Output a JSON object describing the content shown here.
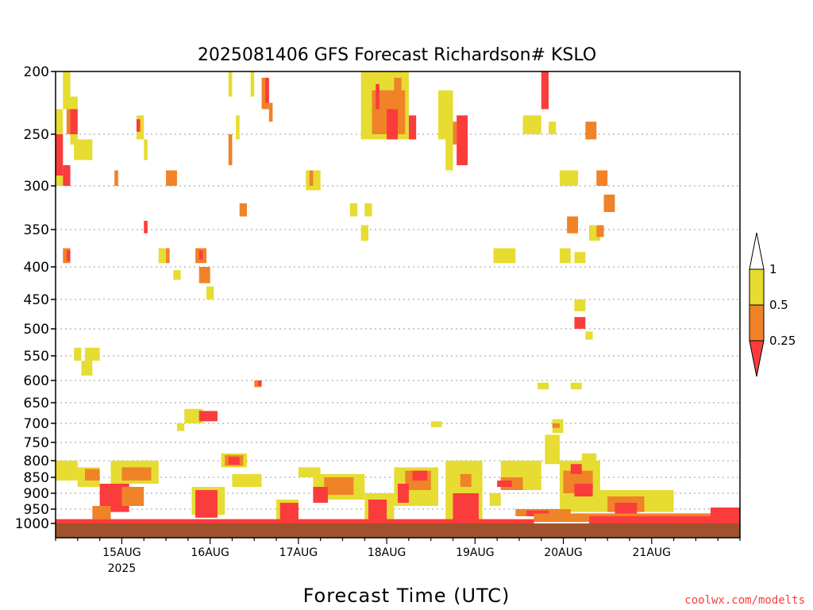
{
  "chart_data": {
    "type": "heatmap",
    "title": "2025081406 GFS Forecast Richardson# KSLO",
    "xlabel": "Forecast Time (UTC)",
    "ylabel": "",
    "credit": "coolwx.com/modelts",
    "y_scale": "pressure (decreasing upward)",
    "ylim": [
      1000,
      200
    ],
    "y_ticks": [
      200,
      250,
      300,
      350,
      400,
      450,
      500,
      550,
      600,
      650,
      700,
      750,
      800,
      850,
      900,
      950,
      1000
    ],
    "x_ticks": [
      {
        "label": "15AUG",
        "sublabel": "2025",
        "hour": 18
      },
      {
        "label": "16AUG",
        "sublabel": "",
        "hour": 42
      },
      {
        "label": "17AUG",
        "sublabel": "",
        "hour": 66
      },
      {
        "label": "18AUG",
        "sublabel": "",
        "hour": 90
      },
      {
        "label": "19AUG",
        "sublabel": "",
        "hour": 114
      },
      {
        "label": "20AUG",
        "sublabel": "",
        "hour": 138
      },
      {
        "label": "21AUG",
        "sublabel": "",
        "hour": 162
      }
    ],
    "xlim_hours": [
      0,
      186
    ],
    "grid": true,
    "legend": {
      "placement": "right",
      "levels": [
        "1",
        "0.5",
        "0.25"
      ],
      "colors": {
        "gt1": "#ffffff",
        "c05_1": "#e6dc32",
        "c025_05": "#f08228",
        "lt025": "#fa3c3c"
      }
    },
    "surface_color": "#a0522d",
    "cells": [
      {
        "t0": 0,
        "t1": 2,
        "p0": 230,
        "p1": 300,
        "c": "y"
      },
      {
        "t0": 0,
        "t1": 2,
        "p0": 250,
        "p1": 290,
        "c": "r"
      },
      {
        "t0": 2,
        "t1": 4,
        "p0": 200,
        "p1": 230,
        "c": "y"
      },
      {
        "t0": 2,
        "t1": 4,
        "p0": 280,
        "p1": 300,
        "c": "r"
      },
      {
        "t0": 3,
        "t1": 5,
        "p0": 230,
        "p1": 250,
        "c": "o"
      },
      {
        "t0": 4,
        "t1": 6,
        "p0": 220,
        "p1": 260,
        "c": "y"
      },
      {
        "t0": 4,
        "t1": 6,
        "p0": 230,
        "p1": 250,
        "c": "r"
      },
      {
        "t0": 5,
        "t1": 10,
        "p0": 255,
        "p1": 275,
        "c": "y"
      },
      {
        "t0": 2,
        "t1": 4,
        "p0": 375,
        "p1": 395,
        "c": "o"
      },
      {
        "t0": 3,
        "t1": 4,
        "p0": 378,
        "p1": 392,
        "c": "r"
      },
      {
        "t0": 5,
        "t1": 7,
        "p0": 535,
        "p1": 560,
        "c": "y"
      },
      {
        "t0": 7,
        "t1": 10,
        "p0": 560,
        "p1": 590,
        "c": "y"
      },
      {
        "t0": 8,
        "t1": 12,
        "p0": 535,
        "p1": 560,
        "c": "y"
      },
      {
        "t0": 16,
        "t1": 17,
        "p0": 285,
        "p1": 300,
        "c": "o"
      },
      {
        "t0": 22,
        "t1": 24,
        "p0": 235,
        "p1": 255,
        "c": "y"
      },
      {
        "t0": 22,
        "t1": 23,
        "p0": 238,
        "p1": 248,
        "c": "r"
      },
      {
        "t0": 24,
        "t1": 25,
        "p0": 255,
        "p1": 275,
        "c": "y"
      },
      {
        "t0": 30,
        "t1": 33,
        "p0": 285,
        "p1": 300,
        "c": "o"
      },
      {
        "t0": 28,
        "t1": 30,
        "p0": 375,
        "p1": 395,
        "c": "y"
      },
      {
        "t0": 30,
        "t1": 31,
        "p0": 375,
        "p1": 395,
        "c": "o"
      },
      {
        "t0": 32,
        "t1": 34,
        "p0": 405,
        "p1": 420,
        "c": "y"
      },
      {
        "t0": 38,
        "t1": 41,
        "p0": 375,
        "p1": 395,
        "c": "o"
      },
      {
        "t0": 39,
        "t1": 40,
        "p0": 378,
        "p1": 390,
        "c": "r"
      },
      {
        "t0": 39,
        "t1": 42,
        "p0": 400,
        "p1": 425,
        "c": "o"
      },
      {
        "t0": 41,
        "t1": 43,
        "p0": 430,
        "p1": 450,
        "c": "y"
      },
      {
        "t0": 24,
        "t1": 25,
        "p0": 340,
        "p1": 355,
        "c": "r"
      },
      {
        "t0": 47,
        "t1": 48,
        "p0": 200,
        "p1": 220,
        "c": "y"
      },
      {
        "t0": 47,
        "t1": 48,
        "p0": 250,
        "p1": 280,
        "c": "o"
      },
      {
        "t0": 49,
        "t1": 50,
        "p0": 235,
        "p1": 255,
        "c": "y"
      },
      {
        "t0": 53,
        "t1": 54,
        "p0": 200,
        "p1": 220,
        "c": "y"
      },
      {
        "t0": 56,
        "t1": 58,
        "p0": 205,
        "p1": 230,
        "c": "o"
      },
      {
        "t0": 57,
        "t1": 58,
        "p0": 205,
        "p1": 225,
        "c": "r"
      },
      {
        "t0": 58,
        "t1": 59,
        "p0": 225,
        "p1": 240,
        "c": "o"
      },
      {
        "t0": 50,
        "t1": 52,
        "p0": 320,
        "p1": 335,
        "c": "o"
      },
      {
        "t0": 54,
        "t1": 56,
        "p0": 600,
        "p1": 615,
        "c": "o"
      },
      {
        "t0": 55,
        "t1": 56,
        "p0": 600,
        "p1": 612,
        "c": "r"
      },
      {
        "t0": 68,
        "t1": 72,
        "p0": 285,
        "p1": 305,
        "c": "y"
      },
      {
        "t0": 69,
        "t1": 70,
        "p0": 285,
        "p1": 300,
        "c": "o"
      },
      {
        "t0": 80,
        "t1": 82,
        "p0": 320,
        "p1": 335,
        "c": "y"
      },
      {
        "t0": 84,
        "t1": 86,
        "p0": 320,
        "p1": 335,
        "c": "y"
      },
      {
        "t0": 83,
        "t1": 85,
        "p0": 345,
        "p1": 365,
        "c": "y"
      },
      {
        "t0": 83,
        "t1": 96,
        "p0": 200,
        "p1": 255,
        "c": "y"
      },
      {
        "t0": 86,
        "t1": 95,
        "p0": 215,
        "p1": 250,
        "c": "o"
      },
      {
        "t0": 87,
        "t1": 88,
        "p0": 210,
        "p1": 230,
        "c": "r"
      },
      {
        "t0": 90,
        "t1": 93,
        "p0": 230,
        "p1": 255,
        "c": "r"
      },
      {
        "t0": 92,
        "t1": 94,
        "p0": 205,
        "p1": 230,
        "c": "o"
      },
      {
        "t0": 96,
        "t1": 98,
        "p0": 235,
        "p1": 255,
        "c": "r"
      },
      {
        "t0": 104,
        "t1": 108,
        "p0": 215,
        "p1": 255,
        "c": "y"
      },
      {
        "t0": 106,
        "t1": 108,
        "p0": 230,
        "p1": 285,
        "c": "y"
      },
      {
        "t0": 109,
        "t1": 112,
        "p0": 235,
        "p1": 280,
        "c": "r"
      },
      {
        "t0": 108,
        "t1": 109,
        "p0": 240,
        "p1": 260,
        "c": "o"
      },
      {
        "t0": 119,
        "t1": 125,
        "p0": 375,
        "p1": 395,
        "c": "y"
      },
      {
        "t0": 127,
        "t1": 132,
        "p0": 235,
        "p1": 250,
        "c": "y"
      },
      {
        "t0": 132,
        "t1": 134,
        "p0": 200,
        "p1": 230,
        "c": "r"
      },
      {
        "t0": 134,
        "t1": 136,
        "p0": 240,
        "p1": 250,
        "c": "y"
      },
      {
        "t0": 137,
        "t1": 142,
        "p0": 285,
        "p1": 300,
        "c": "y"
      },
      {
        "t0": 139,
        "t1": 142,
        "p0": 335,
        "p1": 355,
        "c": "o"
      },
      {
        "t0": 137,
        "t1": 140,
        "p0": 375,
        "p1": 395,
        "c": "y"
      },
      {
        "t0": 144,
        "t1": 147,
        "p0": 240,
        "p1": 255,
        "c": "o"
      },
      {
        "t0": 147,
        "t1": 150,
        "p0": 285,
        "p1": 300,
        "c": "o"
      },
      {
        "t0": 149,
        "t1": 152,
        "p0": 310,
        "p1": 330,
        "c": "o"
      },
      {
        "t0": 145,
        "t1": 148,
        "p0": 345,
        "p1": 365,
        "c": "y"
      },
      {
        "t0": 147,
        "t1": 149,
        "p0": 345,
        "p1": 360,
        "c": "o"
      },
      {
        "t0": 141,
        "t1": 144,
        "p0": 380,
        "p1": 395,
        "c": "y"
      },
      {
        "t0": 141,
        "t1": 144,
        "p0": 450,
        "p1": 470,
        "c": "y"
      },
      {
        "t0": 141,
        "t1": 144,
        "p0": 480,
        "p1": 500,
        "c": "r"
      },
      {
        "t0": 144,
        "t1": 146,
        "p0": 505,
        "p1": 520,
        "c": "y"
      },
      {
        "t0": 131,
        "t1": 134,
        "p0": 605,
        "p1": 620,
        "c": "y"
      },
      {
        "t0": 140,
        "t1": 143,
        "p0": 605,
        "p1": 620,
        "c": "y"
      },
      {
        "t0": 35,
        "t1": 40,
        "p0": 665,
        "p1": 700,
        "c": "y"
      },
      {
        "t0": 39,
        "t1": 44,
        "p0": 670,
        "p1": 695,
        "c": "r"
      },
      {
        "t0": 33,
        "t1": 35,
        "p0": 700,
        "p1": 720,
        "c": "y"
      },
      {
        "t0": 102,
        "t1": 105,
        "p0": 695,
        "p1": 710,
        "c": "y"
      },
      {
        "t0": 135,
        "t1": 138,
        "p0": 690,
        "p1": 725,
        "c": "y"
      },
      {
        "t0": 135,
        "t1": 137,
        "p0": 700,
        "p1": 712,
        "c": "o"
      },
      {
        "t0": 133,
        "t1": 137,
        "p0": 730,
        "p1": 810,
        "c": "y"
      },
      {
        "t0": 143,
        "t1": 147,
        "p0": 780,
        "p1": 800,
        "c": "y"
      },
      {
        "t0": 0,
        "t1": 6,
        "p0": 800,
        "p1": 860,
        "c": "y"
      },
      {
        "t0": 6,
        "t1": 12,
        "p0": 820,
        "p1": 880,
        "c": "y"
      },
      {
        "t0": 8,
        "t1": 12,
        "p0": 825,
        "p1": 860,
        "c": "o"
      },
      {
        "t0": 15,
        "t1": 28,
        "p0": 800,
        "p1": 870,
        "c": "y"
      },
      {
        "t0": 18,
        "t1": 26,
        "p0": 820,
        "p1": 860,
        "c": "o"
      },
      {
        "t0": 12,
        "t1": 20,
        "p0": 870,
        "p1": 960,
        "c": "r"
      },
      {
        "t0": 18,
        "t1": 24,
        "p0": 880,
        "p1": 940,
        "c": "o"
      },
      {
        "t0": 45,
        "t1": 52,
        "p0": 780,
        "p1": 820,
        "c": "y"
      },
      {
        "t0": 46,
        "t1": 51,
        "p0": 785,
        "p1": 815,
        "c": "o"
      },
      {
        "t0": 47,
        "t1": 50,
        "p0": 790,
        "p1": 812,
        "c": "r"
      },
      {
        "t0": 48,
        "t1": 56,
        "p0": 840,
        "p1": 880,
        "c": "y"
      },
      {
        "t0": 37,
        "t1": 46,
        "p0": 880,
        "p1": 970,
        "c": "y"
      },
      {
        "t0": 38,
        "t1": 44,
        "p0": 890,
        "p1": 980,
        "c": "r"
      },
      {
        "t0": 60,
        "t1": 66,
        "p0": 920,
        "p1": 990,
        "c": "y"
      },
      {
        "t0": 61,
        "t1": 66,
        "p0": 930,
        "p1": 990,
        "c": "r"
      },
      {
        "t0": 66,
        "t1": 72,
        "p0": 820,
        "p1": 850,
        "c": "y"
      },
      {
        "t0": 70,
        "t1": 84,
        "p0": 840,
        "p1": 920,
        "c": "y"
      },
      {
        "t0": 73,
        "t1": 81,
        "p0": 850,
        "p1": 905,
        "c": "o"
      },
      {
        "t0": 70,
        "t1": 74,
        "p0": 880,
        "p1": 930,
        "c": "r"
      },
      {
        "t0": 84,
        "t1": 92,
        "p0": 900,
        "p1": 990,
        "c": "y"
      },
      {
        "t0": 85,
        "t1": 90,
        "p0": 920,
        "p1": 990,
        "c": "r"
      },
      {
        "t0": 92,
        "t1": 104,
        "p0": 820,
        "p1": 940,
        "c": "y"
      },
      {
        "t0": 95,
        "t1": 102,
        "p0": 830,
        "p1": 890,
        "c": "o"
      },
      {
        "t0": 93,
        "t1": 96,
        "p0": 870,
        "p1": 930,
        "c": "r"
      },
      {
        "t0": 97,
        "t1": 101,
        "p0": 830,
        "p1": 860,
        "c": "r"
      },
      {
        "t0": 106,
        "t1": 116,
        "p0": 800,
        "p1": 990,
        "c": "y"
      },
      {
        "t0": 108,
        "t1": 115,
        "p0": 900,
        "p1": 990,
        "c": "r"
      },
      {
        "t0": 110,
        "t1": 113,
        "p0": 840,
        "p1": 880,
        "c": "o"
      },
      {
        "t0": 121,
        "t1": 132,
        "p0": 800,
        "p1": 890,
        "c": "y"
      },
      {
        "t0": 121,
        "t1": 127,
        "p0": 850,
        "p1": 890,
        "c": "o"
      },
      {
        "t0": 120,
        "t1": 124,
        "p0": 860,
        "p1": 880,
        "c": "r"
      },
      {
        "t0": 118,
        "t1": 121,
        "p0": 900,
        "p1": 940,
        "c": "y"
      },
      {
        "t0": 137,
        "t1": 148,
        "p0": 800,
        "p1": 960,
        "c": "y"
      },
      {
        "t0": 138,
        "t1": 146,
        "p0": 830,
        "p1": 900,
        "c": "o"
      },
      {
        "t0": 140,
        "t1": 143,
        "p0": 810,
        "p1": 840,
        "c": "r"
      },
      {
        "t0": 141,
        "t1": 146,
        "p0": 870,
        "p1": 910,
        "c": "r"
      },
      {
        "t0": 146,
        "t1": 168,
        "p0": 890,
        "p1": 960,
        "c": "y"
      },
      {
        "t0": 150,
        "t1": 160,
        "p0": 910,
        "p1": 960,
        "c": "o"
      },
      {
        "t0": 152,
        "t1": 158,
        "p0": 930,
        "p1": 990,
        "c": "r"
      },
      {
        "t0": 160,
        "t1": 166,
        "p0": 900,
        "p1": 920,
        "c": "y"
      },
      {
        "t0": 125,
        "t1": 140,
        "p0": 950,
        "p1": 975,
        "c": "o"
      },
      {
        "t0": 128,
        "t1": 134,
        "p0": 955,
        "p1": 975,
        "c": "r"
      },
      {
        "t0": 130,
        "t1": 186,
        "p0": 965,
        "p1": 995,
        "c": "o"
      },
      {
        "t0": 145,
        "t1": 186,
        "p0": 975,
        "p1": 1000,
        "c": "r"
      },
      {
        "t0": 178,
        "t1": 186,
        "p0": 945,
        "p1": 975,
        "c": "r"
      },
      {
        "t0": 0,
        "t1": 130,
        "p0": 985,
        "p1": 1000,
        "c": "r"
      },
      {
        "t0": 10,
        "t1": 15,
        "p0": 940,
        "p1": 985,
        "c": "o"
      }
    ]
  }
}
